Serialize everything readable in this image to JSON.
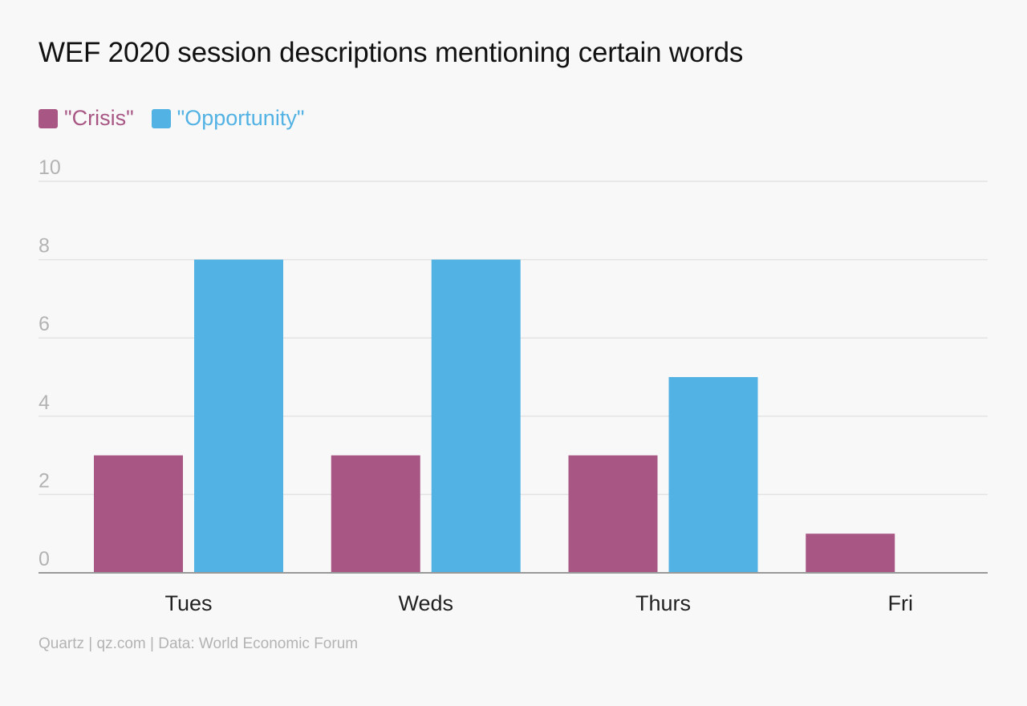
{
  "chart_data": {
    "type": "bar",
    "title": "WEF 2020 session descriptions mentioning certain words",
    "categories": [
      "Tues",
      "Weds",
      "Thurs",
      "Fri"
    ],
    "series": [
      {
        "name": "\"Crisis\"",
        "color": "#a85785",
        "values": [
          3,
          3,
          3,
          1
        ]
      },
      {
        "name": "\"Opportunity\"",
        "color": "#52b2e4",
        "values": [
          8,
          8,
          5,
          0
        ]
      }
    ],
    "yticks": [
      0,
      2,
      4,
      6,
      8,
      10
    ],
    "ylim": [
      0,
      10
    ],
    "xlabel": "",
    "ylabel": "",
    "grid": true,
    "legend": "top-left"
  },
  "source": "Quartz | qz.com | Data: World Economic Forum",
  "colors": {
    "background": "#f8f8f8",
    "grid": "#e3e3e3",
    "axis": "#999999",
    "tick_label": "#b3b3b3",
    "category_label": "#222222"
  }
}
